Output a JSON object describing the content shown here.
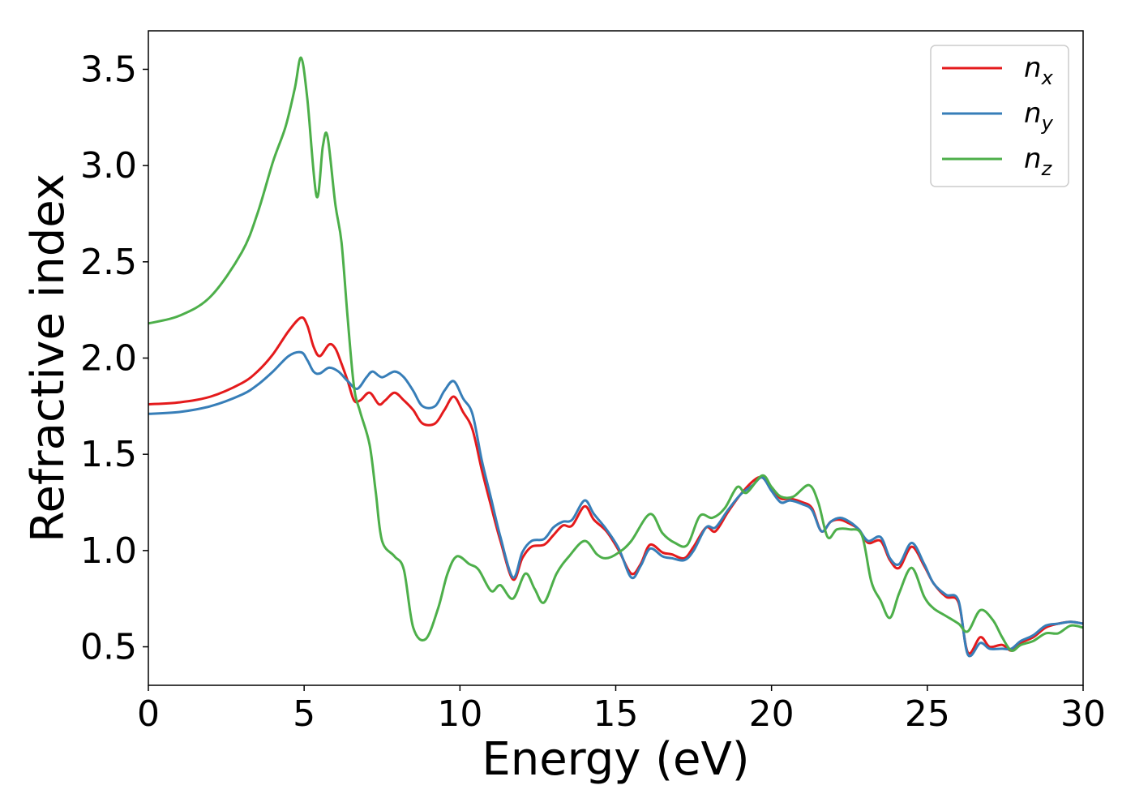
{
  "chart_data": {
    "type": "line",
    "xlabel": "Energy (eV)",
    "ylabel": "Refractive index",
    "xlim": [
      0,
      30
    ],
    "ylim": [
      0.3,
      3.7
    ],
    "xticks": [
      0,
      5,
      10,
      15,
      20,
      25,
      30
    ],
    "xtick_labels": [
      "0",
      "5",
      "10",
      "15",
      "20",
      "25",
      "30"
    ],
    "yticks": [
      0.5,
      1.0,
      1.5,
      2.0,
      2.5,
      3.0,
      3.5
    ],
    "ytick_labels": [
      "0.5",
      "1.0",
      "1.5",
      "2.0",
      "2.5",
      "3.0",
      "3.5"
    ],
    "grid": false,
    "legend_position": "top-right",
    "series": [
      {
        "name": "n_x",
        "label_base": "n",
        "label_sub": "x",
        "color": "#e41a1c",
        "points": [
          [
            0,
            1.76
          ],
          [
            1,
            1.77
          ],
          [
            2,
            1.8
          ],
          [
            3,
            1.87
          ],
          [
            3.5,
            1.93
          ],
          [
            4,
            2.02
          ],
          [
            4.5,
            2.14
          ],
          [
            4.9,
            2.21
          ],
          [
            5.1,
            2.17
          ],
          [
            5.3,
            2.06
          ],
          [
            5.5,
            2.01
          ],
          [
            5.8,
            2.07
          ],
          [
            6.0,
            2.05
          ],
          [
            6.2,
            1.97
          ],
          [
            6.4,
            1.88
          ],
          [
            6.6,
            1.78
          ],
          [
            6.8,
            1.78
          ],
          [
            7.1,
            1.82
          ],
          [
            7.4,
            1.76
          ],
          [
            7.6,
            1.78
          ],
          [
            7.9,
            1.82
          ],
          [
            8.2,
            1.78
          ],
          [
            8.5,
            1.73
          ],
          [
            8.8,
            1.66
          ],
          [
            9.2,
            1.66
          ],
          [
            9.5,
            1.73
          ],
          [
            9.8,
            1.8
          ],
          [
            10.1,
            1.72
          ],
          [
            10.4,
            1.63
          ],
          [
            10.7,
            1.42
          ],
          [
            11.0,
            1.23
          ],
          [
            11.3,
            1.05
          ],
          [
            11.7,
            0.85
          ],
          [
            12.0,
            0.96
          ],
          [
            12.3,
            1.02
          ],
          [
            12.7,
            1.03
          ],
          [
            13.0,
            1.08
          ],
          [
            13.3,
            1.13
          ],
          [
            13.6,
            1.13
          ],
          [
            14.0,
            1.23
          ],
          [
            14.3,
            1.16
          ],
          [
            14.7,
            1.1
          ],
          [
            15.1,
            1.0
          ],
          [
            15.5,
            0.88
          ],
          [
            15.8,
            0.93
          ],
          [
            16.1,
            1.03
          ],
          [
            16.5,
            0.99
          ],
          [
            16.8,
            0.98
          ],
          [
            17.2,
            0.96
          ],
          [
            17.5,
            1.02
          ],
          [
            17.9,
            1.12
          ],
          [
            18.2,
            1.1
          ],
          [
            18.6,
            1.2
          ],
          [
            19.0,
            1.29
          ],
          [
            19.4,
            1.36
          ],
          [
            19.7,
            1.38
          ],
          [
            20.0,
            1.32
          ],
          [
            20.3,
            1.27
          ],
          [
            20.6,
            1.27
          ],
          [
            21.0,
            1.25
          ],
          [
            21.3,
            1.22
          ],
          [
            21.6,
            1.1
          ],
          [
            21.9,
            1.15
          ],
          [
            22.2,
            1.16
          ],
          [
            22.5,
            1.14
          ],
          [
            22.8,
            1.11
          ],
          [
            23.1,
            1.04
          ],
          [
            23.5,
            1.05
          ],
          [
            23.8,
            0.95
          ],
          [
            24.1,
            0.91
          ],
          [
            24.5,
            1.02
          ],
          [
            24.9,
            0.92
          ],
          [
            25.2,
            0.83
          ],
          [
            25.6,
            0.76
          ],
          [
            26.0,
            0.73
          ],
          [
            26.3,
            0.47
          ],
          [
            26.7,
            0.55
          ],
          [
            27.0,
            0.5
          ],
          [
            27.4,
            0.51
          ],
          [
            27.7,
            0.48
          ],
          [
            28.0,
            0.52
          ],
          [
            28.4,
            0.55
          ],
          [
            28.8,
            0.6
          ],
          [
            29.2,
            0.62
          ],
          [
            29.6,
            0.63
          ],
          [
            30,
            0.62
          ]
        ]
      },
      {
        "name": "n_y",
        "label_base": "n",
        "label_sub": "y",
        "color": "#377eb8",
        "points": [
          [
            0,
            1.71
          ],
          [
            1,
            1.72
          ],
          [
            2,
            1.75
          ],
          [
            3,
            1.81
          ],
          [
            3.5,
            1.86
          ],
          [
            4,
            1.93
          ],
          [
            4.5,
            2.01
          ],
          [
            4.9,
            2.03
          ],
          [
            5.1,
            1.99
          ],
          [
            5.3,
            1.93
          ],
          [
            5.5,
            1.92
          ],
          [
            5.8,
            1.95
          ],
          [
            6.1,
            1.93
          ],
          [
            6.4,
            1.88
          ],
          [
            6.7,
            1.84
          ],
          [
            7.0,
            1.9
          ],
          [
            7.2,
            1.93
          ],
          [
            7.5,
            1.9
          ],
          [
            7.9,
            1.93
          ],
          [
            8.2,
            1.9
          ],
          [
            8.5,
            1.83
          ],
          [
            8.8,
            1.75
          ],
          [
            9.2,
            1.75
          ],
          [
            9.5,
            1.83
          ],
          [
            9.8,
            1.88
          ],
          [
            10.1,
            1.79
          ],
          [
            10.4,
            1.71
          ],
          [
            10.7,
            1.47
          ],
          [
            11.0,
            1.27
          ],
          [
            11.3,
            1.07
          ],
          [
            11.7,
            0.86
          ],
          [
            12.0,
            0.99
          ],
          [
            12.3,
            1.05
          ],
          [
            12.7,
            1.06
          ],
          [
            13.0,
            1.12
          ],
          [
            13.3,
            1.15
          ],
          [
            13.6,
            1.16
          ],
          [
            14.0,
            1.26
          ],
          [
            14.3,
            1.19
          ],
          [
            14.7,
            1.11
          ],
          [
            15.1,
            1.01
          ],
          [
            15.5,
            0.86
          ],
          [
            15.8,
            0.92
          ],
          [
            16.1,
            1.01
          ],
          [
            16.5,
            0.97
          ],
          [
            16.8,
            0.96
          ],
          [
            17.2,
            0.95
          ],
          [
            17.5,
            1.0
          ],
          [
            17.9,
            1.12
          ],
          [
            18.2,
            1.12
          ],
          [
            18.6,
            1.21
          ],
          [
            19.0,
            1.29
          ],
          [
            19.4,
            1.34
          ],
          [
            19.7,
            1.38
          ],
          [
            20.0,
            1.31
          ],
          [
            20.3,
            1.25
          ],
          [
            20.6,
            1.26
          ],
          [
            21.0,
            1.24
          ],
          [
            21.3,
            1.21
          ],
          [
            21.6,
            1.1
          ],
          [
            21.9,
            1.15
          ],
          [
            22.2,
            1.17
          ],
          [
            22.5,
            1.15
          ],
          [
            22.8,
            1.11
          ],
          [
            23.1,
            1.05
          ],
          [
            23.5,
            1.07
          ],
          [
            23.8,
            0.96
          ],
          [
            24.1,
            0.93
          ],
          [
            24.5,
            1.04
          ],
          [
            24.9,
            0.93
          ],
          [
            25.2,
            0.83
          ],
          [
            25.6,
            0.77
          ],
          [
            26.0,
            0.74
          ],
          [
            26.3,
            0.46
          ],
          [
            26.7,
            0.52
          ],
          [
            27.0,
            0.49
          ],
          [
            27.4,
            0.49
          ],
          [
            27.7,
            0.49
          ],
          [
            28.0,
            0.53
          ],
          [
            28.4,
            0.56
          ],
          [
            28.8,
            0.61
          ],
          [
            29.2,
            0.62
          ],
          [
            29.6,
            0.63
          ],
          [
            30,
            0.62
          ]
        ]
      },
      {
        "name": "n_z",
        "label_base": "n",
        "label_sub": "z",
        "color": "#4daf4a",
        "points": [
          [
            0,
            2.18
          ],
          [
            1,
            2.22
          ],
          [
            2,
            2.32
          ],
          [
            3,
            2.55
          ],
          [
            3.5,
            2.75
          ],
          [
            4.0,
            3.02
          ],
          [
            4.4,
            3.2
          ],
          [
            4.7,
            3.4
          ],
          [
            4.9,
            3.56
          ],
          [
            5.1,
            3.35
          ],
          [
            5.4,
            2.84
          ],
          [
            5.6,
            3.1
          ],
          [
            5.75,
            3.15
          ],
          [
            6.0,
            2.8
          ],
          [
            6.2,
            2.6
          ],
          [
            6.4,
            2.2
          ],
          [
            6.6,
            1.85
          ],
          [
            6.8,
            1.72
          ],
          [
            7.1,
            1.55
          ],
          [
            7.3,
            1.3
          ],
          [
            7.5,
            1.05
          ],
          [
            7.9,
            0.97
          ],
          [
            8.2,
            0.9
          ],
          [
            8.5,
            0.6
          ],
          [
            8.9,
            0.54
          ],
          [
            9.3,
            0.7
          ],
          [
            9.6,
            0.88
          ],
          [
            9.9,
            0.97
          ],
          [
            10.3,
            0.93
          ],
          [
            10.6,
            0.9
          ],
          [
            11.0,
            0.79
          ],
          [
            11.3,
            0.82
          ],
          [
            11.7,
            0.75
          ],
          [
            12.1,
            0.88
          ],
          [
            12.4,
            0.8
          ],
          [
            12.7,
            0.73
          ],
          [
            13.1,
            0.88
          ],
          [
            13.5,
            0.97
          ],
          [
            14.0,
            1.05
          ],
          [
            14.4,
            0.98
          ],
          [
            14.7,
            0.96
          ],
          [
            15.1,
            0.99
          ],
          [
            15.5,
            1.05
          ],
          [
            16.1,
            1.19
          ],
          [
            16.5,
            1.09
          ],
          [
            16.9,
            1.04
          ],
          [
            17.3,
            1.03
          ],
          [
            17.7,
            1.18
          ],
          [
            18.1,
            1.17
          ],
          [
            18.5,
            1.22
          ],
          [
            18.9,
            1.33
          ],
          [
            19.2,
            1.3
          ],
          [
            19.7,
            1.39
          ],
          [
            20.0,
            1.33
          ],
          [
            20.3,
            1.28
          ],
          [
            20.7,
            1.28
          ],
          [
            21.2,
            1.34
          ],
          [
            21.5,
            1.25
          ],
          [
            21.8,
            1.07
          ],
          [
            22.1,
            1.11
          ],
          [
            22.5,
            1.11
          ],
          [
            22.9,
            1.08
          ],
          [
            23.2,
            0.84
          ],
          [
            23.5,
            0.74
          ],
          [
            23.8,
            0.65
          ],
          [
            24.1,
            0.78
          ],
          [
            24.5,
            0.91
          ],
          [
            24.9,
            0.76
          ],
          [
            25.2,
            0.7
          ],
          [
            25.6,
            0.66
          ],
          [
            26.0,
            0.62
          ],
          [
            26.3,
            0.58
          ],
          [
            26.7,
            0.69
          ],
          [
            27.1,
            0.64
          ],
          [
            27.4,
            0.55
          ],
          [
            27.7,
            0.48
          ],
          [
            28.0,
            0.51
          ],
          [
            28.4,
            0.53
          ],
          [
            28.8,
            0.57
          ],
          [
            29.2,
            0.57
          ],
          [
            29.6,
            0.61
          ],
          [
            30,
            0.6
          ]
        ]
      }
    ]
  }
}
